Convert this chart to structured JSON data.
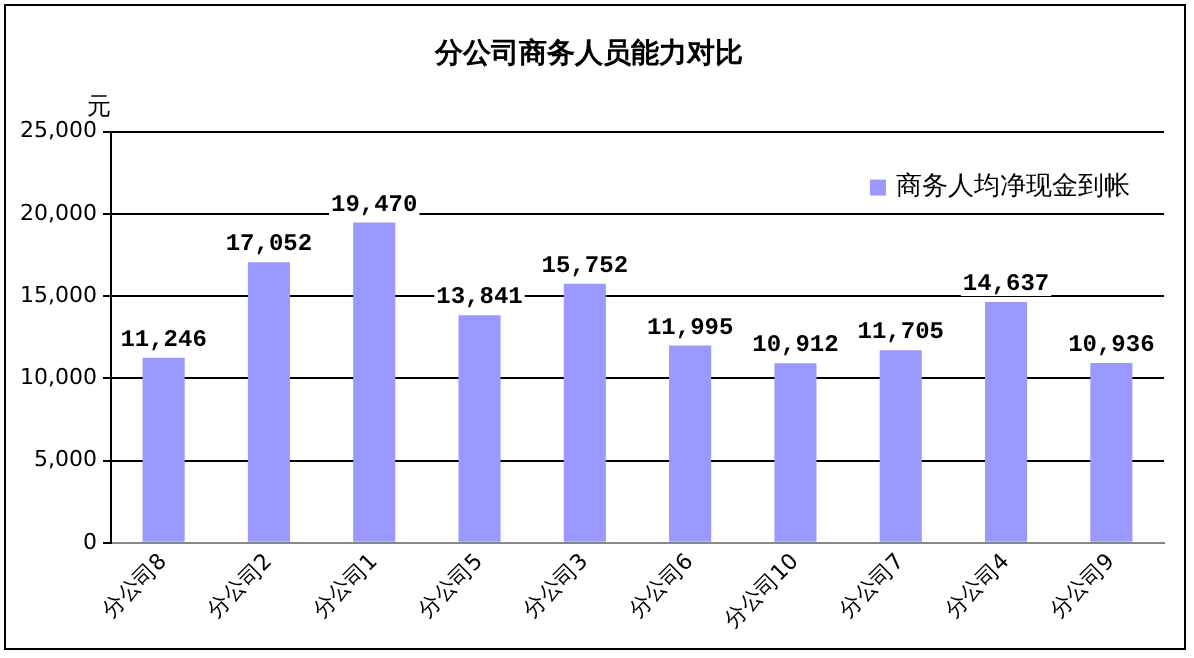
{
  "chart_data": {
    "type": "bar",
    "title": "分公司商务人员能力对比",
    "ylabel": "元",
    "categories": [
      "分公司8",
      "分公司2",
      "分公司1",
      "分公司5",
      "分公司3",
      "分公司6",
      "分公司10",
      "分公司7",
      "分公司4",
      "分公司9"
    ],
    "series": [
      {
        "name": "商务人均净现金到帐",
        "color": "#9999ff",
        "values": [
          11246,
          17052,
          19470,
          13841,
          15752,
          11995,
          10912,
          11705,
          14637,
          10936
        ],
        "value_labels": [
          "11,246",
          "17,052",
          "19,470",
          "13,841",
          "15,752",
          "11,995",
          "10,912",
          "11,705",
          "14,637",
          "10,936"
        ]
      }
    ],
    "ylim": [
      0,
      25000
    ],
    "yticks": [
      0,
      {
        "value": 5000,
        "label": "5,000"
      },
      {
        "value": 10000,
        "label": "10,000"
      },
      {
        "value": 15000,
        "label": "15,000"
      },
      {
        "value": 20000,
        "label": "20,000"
      },
      {
        "value": 25000,
        "label": "25,000"
      }
    ],
    "grid": "y",
    "legend": "top right"
  }
}
